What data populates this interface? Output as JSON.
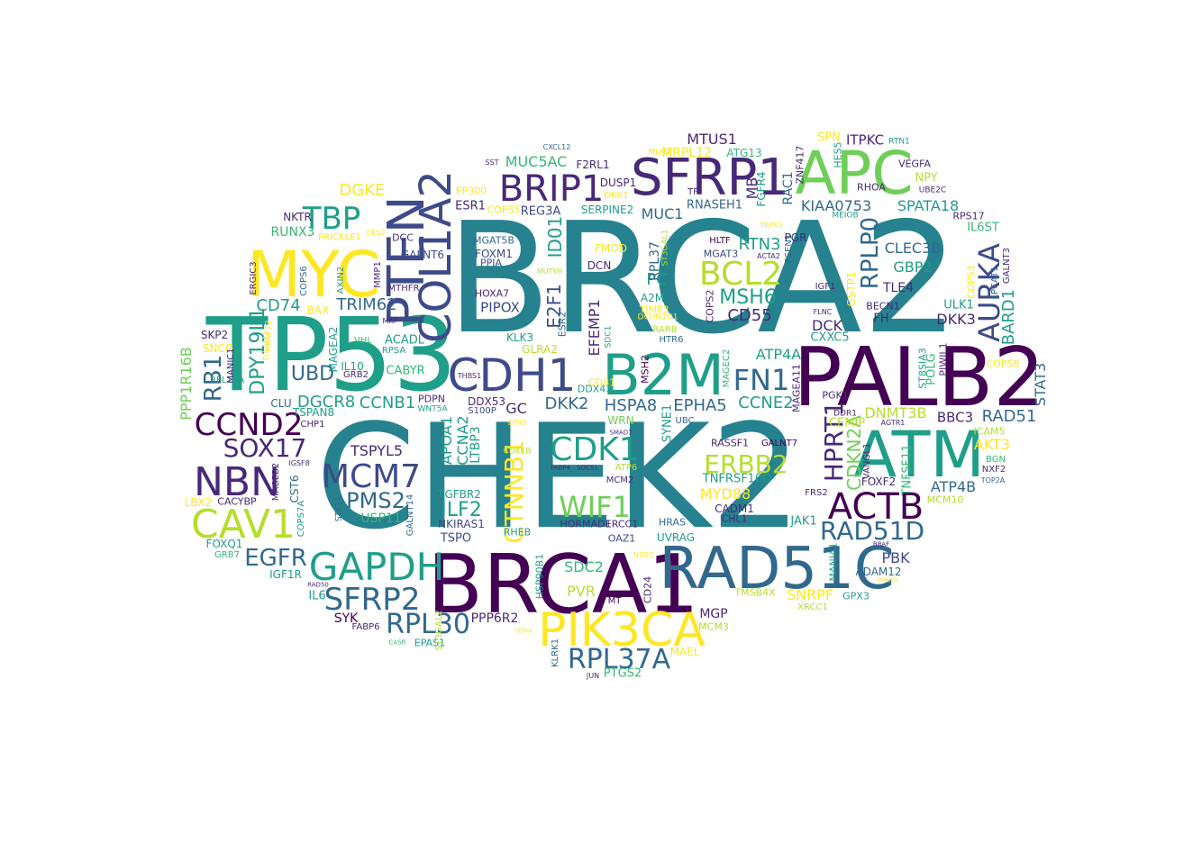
{
  "word_cloud": {
    "colors": {
      "dark_purple": "#440154",
      "indigo": "#482878",
      "blue_purple": "#3e4a89",
      "slate_blue": "#31688e",
      "teal": "#26828e",
      "green_teal": "#1f9e89",
      "green": "#35b779",
      "lime": "#6ece58",
      "yellow_green": "#b5de2b",
      "yellow": "#fde725"
    },
    "words": [
      "BRCA2",
      "CHEK2",
      "BRCA1",
      "PALB2",
      "TP53",
      "ATM",
      "RAD51C",
      "APC",
      "B2M",
      "CDH1",
      "MYC",
      "SFRP1",
      "PIK3CA",
      "BRIP1",
      "PTEN",
      "COL1A2",
      "CDK1",
      "NBN",
      "MCM7",
      "CAV1",
      "GAPDH",
      "SFRP2",
      "CCND2",
      "SOX17",
      "RPL30",
      "ACTB",
      "BCL2",
      "AURKA",
      "RPL37A",
      "RAD51D",
      "RPLP0",
      "FN1",
      "TBP",
      "ERBB2",
      "WIF1",
      "HPRT1",
      "MSH6",
      "CDKN2A",
      "ILF2",
      "CTNNB1",
      "EGFR",
      "PMS2",
      "ID01",
      "E2F1",
      "BARD1",
      "STAT3",
      "RAD51",
      "CD74",
      "TRIM62",
      "DPY19L1",
      "RB1",
      "CCNB1",
      "DGCR8",
      "UBD",
      "CCNE2",
      "HSPA8",
      "EPHA5",
      "DKK2",
      "GC",
      "EFEMP1",
      "MUC5AC",
      "DGKE",
      "RUNX3",
      "NKTR",
      "PRICKLE1",
      "GALNT6",
      "MGAT5B",
      "FOXM1",
      "REG3A",
      "ESR1",
      "MTUS1",
      "ITPKC",
      "VEGFA",
      "NPY",
      "KIAA0753",
      "SPATA18",
      "CLEC3B",
      "GBP2",
      "TLE4",
      "BECN1",
      "FH",
      "DKK3",
      "ULK1",
      "IL6ST",
      "CXXC5",
      "DCK",
      "RTN3",
      "ATP4A",
      "CD55",
      "PC",
      "MUC1",
      "A2M",
      "TIMP3",
      "PIPOX",
      "HOXA7",
      "DDX53",
      "PDPN",
      "WNT5A",
      "TSPAN8",
      "CLU",
      "BAX",
      "ACADL",
      "CABYR",
      "RPSA",
      "VHL",
      "IL10",
      "GRB2",
      "SNCG",
      "MAF",
      "MTHFR",
      "COPS6",
      "AXIN2",
      "MMP1",
      "ERGIC3",
      "SKP2",
      "PPP1R16B",
      "RPL13A",
      "CD24",
      "MGP",
      "MYD88",
      "TNFRSF10D",
      "CADM1",
      "CHL1",
      "JAK1",
      "RASSF1",
      "GALNT7",
      "SNRPF",
      "GPX3",
      "ADAM12",
      "PBK",
      "FRS2",
      "TSPYL5",
      "CST6",
      "MAGEB2",
      "IGSF8",
      "CHP1",
      "USP11",
      "TGFBR2",
      "NKIRAS1",
      "TSPO",
      "RHEB",
      "HORMAD1",
      "ERCC1",
      "OAZ1",
      "HRAS",
      "UVRAG",
      "SDC2",
      "PVR",
      "MT",
      "PPP6R2",
      "KLRK1",
      "PTGS2",
      "JUN",
      "MAEL",
      "MCM3",
      "XRCC1",
      "TMSB4X",
      "DNMT3B",
      "BBC3",
      "AKT3",
      "ICAM5",
      "BGN",
      "NXF2",
      "TOP2A",
      "MCM10",
      "FOXF2",
      "ATP4B",
      "TNFSF11",
      "POLG",
      "PIWIL1",
      "ST8SIA3",
      "PGK1",
      "DDR1",
      "VANGL1",
      "CEMIP",
      "MAGEA11",
      "MAGEC2",
      "HTR6",
      "RARB",
      "DCUN1D1",
      "SYNE1",
      "UBC",
      "CD81",
      "DDX43",
      "WRN",
      "SMAD7",
      "ATP6",
      "MCM2",
      "FABP4",
      "SOCS1",
      "IGF1R",
      "IL6",
      "RAD50",
      "SYK",
      "FABP6",
      "CASR",
      "EPAS1",
      "SDHA",
      "CDK1B",
      "HSP90B1",
      "NSD3",
      "FOXQ1",
      "GRB7",
      "LBX2",
      "CACYBP",
      "COPS7A",
      "STK11",
      "GALNT14",
      "APOA1",
      "CCNA2",
      "LTBP3",
      "S100P",
      "THBS1",
      "EPRS",
      "KLK3",
      "ESR2",
      "GLRA2",
      "MSH2",
      "SDC1",
      "DUSP1",
      "DKK1",
      "SERPINE2",
      "F2RL1",
      "RPL37",
      "ST3GAL1",
      "MUTYH",
      "FMOD",
      "DCN",
      "ATG13",
      "MRPL12",
      "MLH1",
      "TF",
      "MB",
      "RNASEH1",
      "FGFR4",
      "RAC1",
      "ZNF417",
      "HES5",
      "RHOA",
      "UBE2C",
      "SPN",
      "RTN1",
      "IGF1",
      "PGR",
      "PSEN1",
      "ACTA2",
      "HLTF",
      "MGAT3",
      "COPS2",
      "GSTP1",
      "MEIOB",
      "TRPS1",
      "GALNT3",
      "LPCAT1",
      "COPS3",
      "COPS8",
      "AGTR1",
      "MANIA1",
      "BRAF",
      "PPARG",
      "ST3GAL2",
      "AKAP12",
      "DAAM2",
      "MAGEA2",
      "PPIA",
      "EP300",
      "COPS5",
      "SST",
      "CXCL12",
      "CKS2",
      "DCC",
      "MANIC1",
      "FLNC",
      "RPS17"
    ]
  }
}
